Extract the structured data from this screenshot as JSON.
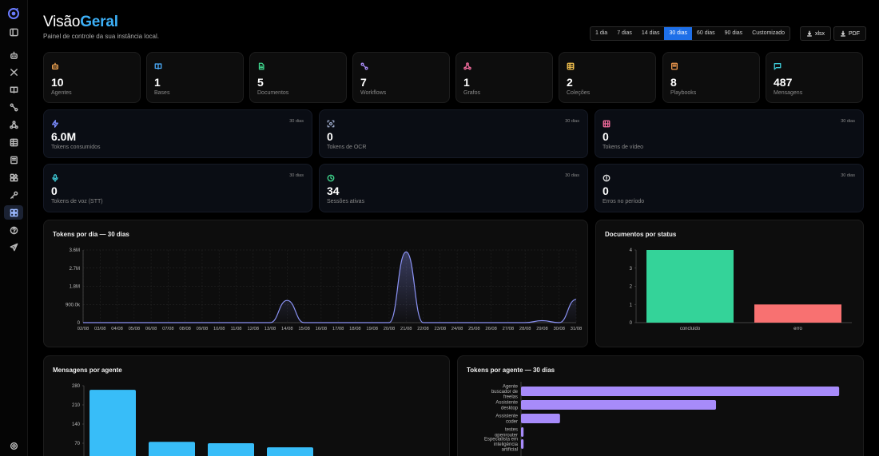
{
  "header": {
    "title_prefix": "Visão",
    "title_highlight": "Geral",
    "subtitle": "Painel de controle da sua instância local."
  },
  "range": {
    "options": [
      "1 dia",
      "7 dias",
      "14 dias",
      "30 dias",
      "60 dias",
      "90 dias",
      "Customizado"
    ],
    "selected": "30 dias"
  },
  "export": {
    "xlsx": "xlsx",
    "pdf": "PDF"
  },
  "stats": [
    {
      "icon": "bot-icon",
      "value": "10",
      "label": "Agentes",
      "color": "#f2a552"
    },
    {
      "icon": "book-icon",
      "value": "1",
      "label": "Bases",
      "color": "#4aa8f5"
    },
    {
      "icon": "document-icon",
      "value": "5",
      "label": "Documentos",
      "color": "#3fd68d"
    },
    {
      "icon": "workflow-icon",
      "value": "7",
      "label": "Workflows",
      "color": "#a98cf7"
    },
    {
      "icon": "graph-icon",
      "value": "1",
      "label": "Grafos",
      "color": "#f06a9b"
    },
    {
      "icon": "table-icon",
      "value": "2",
      "label": "Coleções",
      "color": "#f2c14e"
    },
    {
      "icon": "playbook-icon",
      "value": "8",
      "label": "Playbooks",
      "color": "#f29a4e"
    },
    {
      "icon": "message-icon",
      "value": "487",
      "label": "Mensagens",
      "color": "#3ec9d6"
    }
  ],
  "metrics": [
    {
      "icon": "zap-icon",
      "value": "6.0M",
      "label": "Tokens consumidos",
      "period": "30 dias",
      "color": "#7b8cff"
    },
    {
      "icon": "scan-icon",
      "value": "0",
      "label": "Tokens de OCR",
      "period": "30 dias",
      "color": "#9aa7c7"
    },
    {
      "icon": "film-icon",
      "value": "0",
      "label": "Tokens de vídeo",
      "period": "30 dias",
      "color": "#f06a9b"
    },
    {
      "icon": "mic-icon",
      "value": "0",
      "label": "Tokens de voz (STT)",
      "period": "30 dias",
      "color": "#3ec9d6"
    },
    {
      "icon": "clock-icon",
      "value": "34",
      "label": "Sessões ativas",
      "period": "30 dias",
      "color": "#3fd68d"
    },
    {
      "icon": "alert-icon",
      "value": "0",
      "label": "Erros no período",
      "period": "30 dias",
      "color": "#e0e0e0"
    }
  ],
  "panels": {
    "tokens_day": "Tokens por dia — 30 dias",
    "docs_status": "Documentos por status",
    "msgs_agent": "Mensagens por agente",
    "tokens_agent": "Tokens por agente — 30 dias"
  },
  "chart_data": [
    {
      "type": "area",
      "title": "Tokens por dia — 30 dias",
      "x": [
        "02/08",
        "03/08",
        "04/08",
        "05/08",
        "06/08",
        "07/08",
        "08/08",
        "09/08",
        "10/08",
        "11/08",
        "12/08",
        "13/08",
        "14/08",
        "15/08",
        "16/08",
        "17/08",
        "18/08",
        "19/08",
        "20/08",
        "21/08",
        "22/08",
        "23/08",
        "24/08",
        "25/08",
        "26/08",
        "27/08",
        "28/08",
        "29/08",
        "30/08",
        "31/08"
      ],
      "y": [
        0,
        0,
        0,
        0,
        0,
        0,
        0,
        0,
        0,
        0,
        0,
        0,
        1100000,
        0,
        0,
        0,
        0,
        0,
        0,
        3500000,
        0,
        0,
        0,
        0,
        0,
        0,
        0,
        100000,
        0,
        1150000
      ],
      "yticks": [
        "0",
        "900.0k",
        "1.8M",
        "2.7M",
        "3.6M"
      ],
      "ylim": [
        0,
        3600000
      ],
      "color": "#8b93f5"
    },
    {
      "type": "bar",
      "title": "Documentos por status",
      "categories": [
        "concluido",
        "erro"
      ],
      "values": [
        4,
        1
      ],
      "colors": [
        "#34d399",
        "#f87171"
      ],
      "ylim": [
        0,
        4
      ],
      "yticks": [
        "0",
        "1",
        "2",
        "3",
        "4"
      ]
    },
    {
      "type": "bar",
      "title": "Mensagens por agente",
      "values": [
        265,
        75,
        70,
        55
      ],
      "ylim": [
        0,
        280
      ],
      "yticks": [
        "70",
        "140",
        "210",
        "280"
      ],
      "color": "#38bdf8"
    },
    {
      "type": "bar",
      "orientation": "horizontal",
      "title": "Tokens por agente — 30 dias",
      "categories": [
        [
          "Agente",
          "buscador de",
          "freelas"
        ],
        [
          "Assistente",
          "desktop"
        ],
        [
          "Assistente",
          "coder"
        ],
        [
          "testes",
          "openrouter"
        ],
        [
          "Especialista em",
          "inteligência",
          "artificial"
        ]
      ],
      "values": [
        3100000,
        1900000,
        380000,
        25000,
        25000
      ],
      "xlim": [
        0,
        3200000
      ],
      "color": "#a78bfa"
    }
  ]
}
